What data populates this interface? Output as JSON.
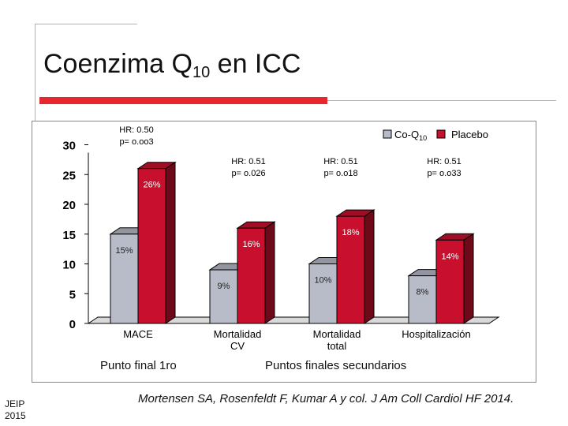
{
  "slide": {
    "title_prefix": "Coenzima Q",
    "title_sub": "10",
    "title_suffix": " en ICC",
    "group_labels": [
      "Punto final 1ro",
      "Puntos finales secundarios"
    ],
    "citation": "Mortensen SA, Rosenfeldt F, Kumar A y col. J Am Coll Cardiol HF 2014.",
    "footer_line1": "JEIP",
    "footer_line2": "2015",
    "colors": {
      "accent": "#e8262d",
      "coq10": "#b8bcc8",
      "placebo": "#c8102e"
    }
  },
  "chart_data": {
    "type": "bar",
    "categories": [
      "MACE",
      "Mortalidad CV",
      "Mortalidad total",
      "Hospitalización"
    ],
    "category_lines": [
      [
        "MACE"
      ],
      [
        "Mortalidad",
        "CV"
      ],
      [
        "Mortalidad",
        "total"
      ],
      [
        "Hospitalización"
      ]
    ],
    "series": [
      {
        "name": "Co-Q10",
        "values": [
          15,
          9,
          10,
          8
        ],
        "labels": [
          "15%",
          "9%",
          "10%",
          "8%"
        ],
        "color": "#b8bcc8"
      },
      {
        "name": "Placebo",
        "values": [
          26,
          16,
          18,
          14
        ],
        "labels": [
          "26%",
          "16%",
          "18%",
          "14%"
        ],
        "color": "#c8102e"
      }
    ],
    "hr_annotations": [
      [
        "HR: 0.50",
        "p= o.oo3"
      ],
      [
        "HR: 0.51",
        "p= o.026"
      ],
      [
        "HR: 0.51",
        "p= o.o18"
      ],
      [
        "HR: 0.51",
        "p= o.o33"
      ]
    ],
    "legend": {
      "items": [
        "Co-Q10",
        "Placebo"
      ],
      "placement": "top-right"
    },
    "yticks": [
      0,
      5,
      10,
      15,
      20,
      25,
      30
    ],
    "ylim": [
      0,
      30
    ],
    "grid": false,
    "style": "3d"
  }
}
